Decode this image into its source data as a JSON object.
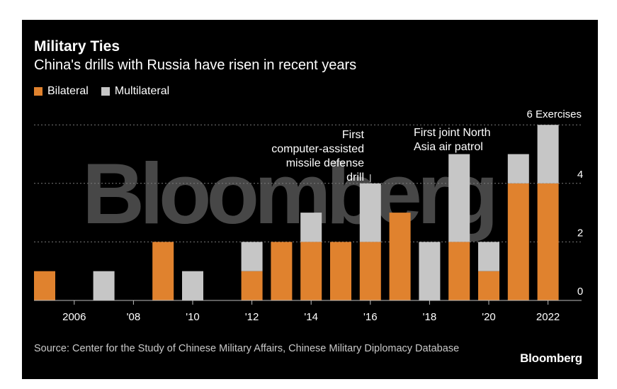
{
  "header": {
    "title": "Military Ties",
    "subtitle": "China's drills with Russia have risen in recent years"
  },
  "legend": [
    {
      "label": "Bilateral",
      "color": "#e0822e"
    },
    {
      "label": "Multilateral",
      "color": "#c6c6c6"
    }
  ],
  "footer": {
    "source": "Source: Center for the Study of Chinese Military Affairs, Chinese Military Diplomacy Database",
    "brand": "Bloomberg"
  },
  "watermark": "Bloomberg",
  "chart_data": {
    "type": "bar",
    "stacked": true,
    "title": "Military Ties",
    "subtitle": "China's drills with Russia have risen in recent years",
    "categories": [
      "2005",
      "2006",
      "2007",
      "2008",
      "2009",
      "2010",
      "2011",
      "2012",
      "2013",
      "2014",
      "2015",
      "2016",
      "2017",
      "2018",
      "2019",
      "2020",
      "2021",
      "2022"
    ],
    "tick_labels": [
      {
        "at": "2006",
        "label": "2006"
      },
      {
        "at": "2008",
        "label": "'08"
      },
      {
        "at": "2010",
        "label": "'10"
      },
      {
        "at": "2012",
        "label": "'12"
      },
      {
        "at": "2014",
        "label": "'14"
      },
      {
        "at": "2016",
        "label": "'16"
      },
      {
        "at": "2018",
        "label": "'18"
      },
      {
        "at": "2020",
        "label": "'20"
      },
      {
        "at": "2022",
        "label": "2022"
      }
    ],
    "series": [
      {
        "name": "Bilateral",
        "color": "#e0822e",
        "values": [
          1,
          0,
          0,
          0,
          2,
          0,
          0,
          1,
          2,
          2,
          2,
          2,
          3,
          0,
          2,
          1,
          4,
          4
        ]
      },
      {
        "name": "Multilateral",
        "color": "#c6c6c6",
        "values": [
          0,
          0,
          1,
          0,
          0,
          1,
          0,
          1,
          0,
          1,
          0,
          2,
          0,
          2,
          3,
          1,
          1,
          2
        ]
      }
    ],
    "ylim": [
      0,
      6
    ],
    "yticks": [
      0,
      2,
      4
    ],
    "top_label": "6 Exercises",
    "grid": true,
    "legend_position": "top-left",
    "annotations": [
      {
        "at": "2016",
        "lines": [
          "First",
          "computer-assisted",
          "missile defense",
          "drill"
        ]
      },
      {
        "at": "2019",
        "lines": [
          "First joint North",
          "Asia air patrol"
        ]
      }
    ]
  }
}
